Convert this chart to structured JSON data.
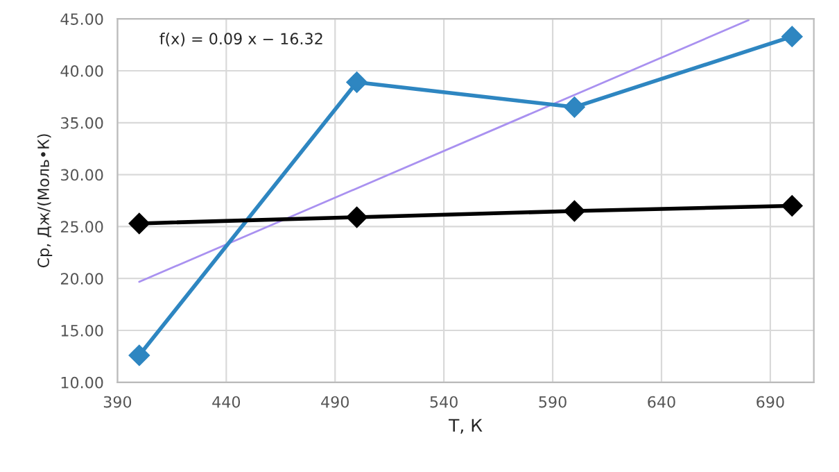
{
  "chart_data": {
    "type": "line",
    "xlabel": "T, К",
    "ylabel": "Cp, Дж/(Моль•К)",
    "x": [
      400,
      500,
      600,
      700
    ],
    "series": [
      {
        "color": "#2e86c1",
        "values": [
          12.6,
          38.9,
          36.5,
          43.3
        ],
        "marker": "diamond"
      },
      {
        "color": "#000000",
        "values": [
          25.3,
          25.9,
          26.5,
          27.0
        ],
        "marker": "diamond"
      },
      {
        "color": "#a991f0",
        "x": [
          400,
          680
        ],
        "values": [
          19.68,
          44.88
        ],
        "marker": "none"
      }
    ],
    "annotations": [
      "f(x) = 0.09 x − 16.32"
    ],
    "xlim": [
      390,
      710
    ],
    "xticks": [
      390,
      440,
      490,
      540,
      590,
      640,
      690
    ],
    "ylim": [
      10,
      45
    ],
    "yticks": [
      {
        "value": 10,
        "label": "10.00"
      },
      {
        "value": 15,
        "label": "15.00"
      },
      {
        "value": 20,
        "label": "20.00"
      },
      {
        "value": 25,
        "label": "25.00"
      },
      {
        "value": 30,
        "label": "30.00"
      },
      {
        "value": 35,
        "label": "35.00"
      },
      {
        "value": 40,
        "label": "40.00"
      },
      {
        "value": 45,
        "label": "45.00"
      }
    ],
    "grid": true,
    "legend": false
  }
}
